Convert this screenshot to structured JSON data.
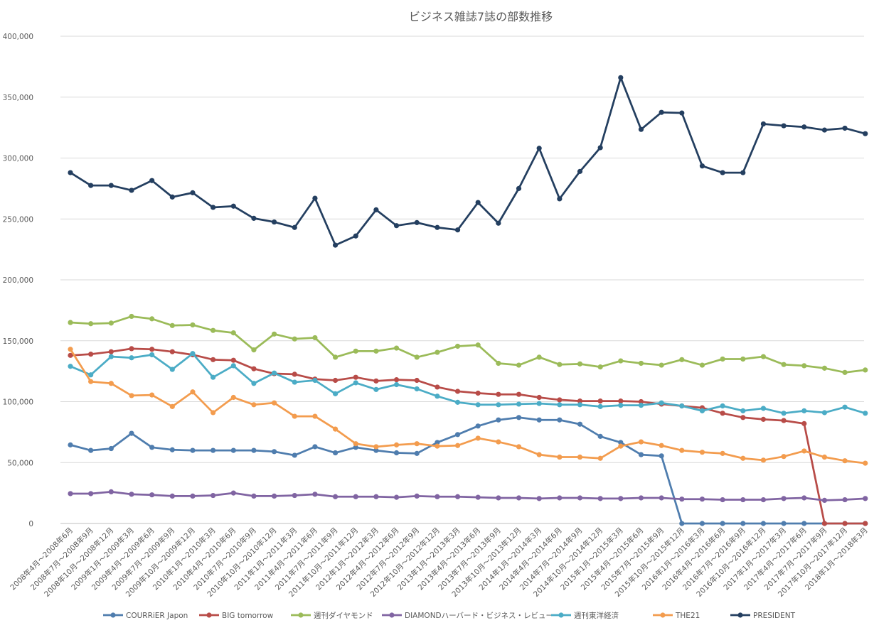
{
  "chart_data": {
    "type": "line",
    "title": "ビジネス雑誌7誌の部数推移",
    "xlabel": "",
    "ylabel": "",
    "ylim": [
      0,
      400000
    ],
    "yticks": [
      0,
      50000,
      100000,
      150000,
      200000,
      250000,
      300000,
      350000,
      400000
    ],
    "ytick_labels": [
      "0",
      "50,000",
      "100,000",
      "150,000",
      "200,000",
      "250,000",
      "300,000",
      "350,000",
      "400,000"
    ],
    "grid": "horizontal",
    "legend_position": "bottom",
    "categories": [
      "2008年4月～2008年6月",
      "2008年7月～2008年9月",
      "2008年10月～2008年12月",
      "2009年1月～2009年3月",
      "2009年4月～2009年6月",
      "2009年7月～2009年9月",
      "2009年10月～2009年12月",
      "2010年1月～2010年3月",
      "2010年4月～2010年6月",
      "2010年7月～2010年9月",
      "2010年10月～2010年12月",
      "2011年1月～2011年3月",
      "2011年4月～2011年6月",
      "2011年7月～2011年9月",
      "2011年10月～2011年12月",
      "2012年1月～2012年3月",
      "2012年4月～2012年6月",
      "2012年7月～2012年9月",
      "2012年10月～2012年12月",
      "2013年1月～2013年3月",
      "2013年4月～2013年6月",
      "2013年7月～2013年9月",
      "2013年10月～2013年12月",
      "2014年1月～2014年3月",
      "2014年4月～2014年6月",
      "2014年7月～2014年9月",
      "2014年10月～2014年12月",
      "2015年1月～2015年3月",
      "2015年4月～2015年6月",
      "2015年7月～2015年9月",
      "2015年10月～2015年12月",
      "2016年1月～2016年3月",
      "2016年4月～2016年6月",
      "2016年7月～2016年9月",
      "2016年10月～2016年12月",
      "2017年1月～2017年3月",
      "2017年4月～2017年6月",
      "2017年7月～2017年9月",
      "2017年10月～2017年12月",
      "2018年1月～2018年3月"
    ],
    "series": [
      {
        "name": "COURRiER Japon",
        "color": "#4F7DAE",
        "values": [
          64500,
          60000,
          61500,
          74000,
          62500,
          60500,
          60000,
          60000,
          60000,
          60000,
          59000,
          56000,
          63000,
          58000,
          62500,
          60000,
          58000,
          57500,
          66500,
          73000,
          80000,
          85000,
          87000,
          85000,
          85000,
          81500,
          71500,
          66500,
          56500,
          55500,
          0,
          0,
          0,
          0,
          0,
          0,
          0,
          0,
          0,
          0
        ]
      },
      {
        "name": "BIG tomorrow",
        "color": "#B84C48",
        "values": [
          138000,
          139000,
          141000,
          143500,
          143000,
          141000,
          138500,
          134500,
          134000,
          127000,
          123000,
          122500,
          118500,
          117500,
          120000,
          117000,
          118000,
          117500,
          112000,
          108500,
          107000,
          106000,
          106000,
          103500,
          101500,
          100500,
          100500,
          100500,
          100000,
          98000,
          96500,
          95000,
          90500,
          87000,
          85500,
          84500,
          82000,
          0,
          0,
          0
        ]
      },
      {
        "name": "週刊ダイヤモンド",
        "color": "#9BBB59",
        "values": [
          165000,
          164000,
          164500,
          170000,
          168000,
          162500,
          163000,
          158500,
          156500,
          142500,
          155500,
          151500,
          152500,
          136500,
          141500,
          141500,
          144000,
          136500,
          140500,
          145500,
          146500,
          131500,
          130000,
          136500,
          130500,
          131000,
          128500,
          133500,
          131500,
          130000,
          134500,
          130000,
          135000,
          135000,
          137000,
          130500,
          129500,
          127500,
          124000,
          126000
        ]
      },
      {
        "name": "DIAMONDハーバード・ビジネス・レビュー",
        "color": "#8064A2",
        "values": [
          24500,
          24500,
          26000,
          24000,
          23500,
          22500,
          22500,
          23000,
          25000,
          22500,
          22500,
          23000,
          24000,
          22000,
          22000,
          22000,
          21500,
          22500,
          22000,
          22000,
          21500,
          21000,
          21000,
          20500,
          21000,
          21000,
          20500,
          20500,
          21000,
          21000,
          20000,
          20000,
          19500,
          19500,
          19500,
          20500,
          21000,
          19000,
          19500,
          20500
        ]
      },
      {
        "name": "週刊東洋経済",
        "color": "#4BACC6",
        "values": [
          129000,
          122000,
          137000,
          136000,
          138500,
          126500,
          139500,
          120000,
          129500,
          115000,
          123500,
          116000,
          117500,
          106500,
          115500,
          110000,
          114000,
          110500,
          104500,
          99500,
          97500,
          97500,
          98000,
          98500,
          97500,
          97500,
          96000,
          97000,
          97000,
          99000,
          96500,
          92500,
          96500,
          92500,
          94500,
          90500,
          92500,
          91000,
          95500,
          90500
        ]
      },
      {
        "name": "THE21",
        "color": "#F39C4E",
        "values": [
          143000,
          116500,
          115000,
          105000,
          105500,
          96000,
          108000,
          91000,
          103500,
          97500,
          99000,
          88000,
          88000,
          77500,
          65500,
          63000,
          64500,
          65500,
          63500,
          64000,
          70000,
          67000,
          63000,
          56500,
          54500,
          54500,
          53500,
          63500,
          67000,
          64000,
          60000,
          58500,
          57500,
          53500,
          52000,
          55000,
          59500,
          54500,
          51500,
          49500
        ]
      },
      {
        "name": "PRESIDENT",
        "color": "#243F60",
        "values": [
          288000,
          277500,
          277500,
          273500,
          281500,
          268000,
          271500,
          259500,
          260500,
          250500,
          247500,
          243000,
          267000,
          228500,
          236000,
          257500,
          244500,
          247000,
          243000,
          241000,
          263500,
          246500,
          275000,
          308000,
          266500,
          289000,
          308500,
          366000,
          323500,
          337500,
          337000,
          293500,
          288000,
          288000,
          328000,
          326500,
          325500,
          323000,
          324500,
          320000
        ]
      }
    ]
  }
}
